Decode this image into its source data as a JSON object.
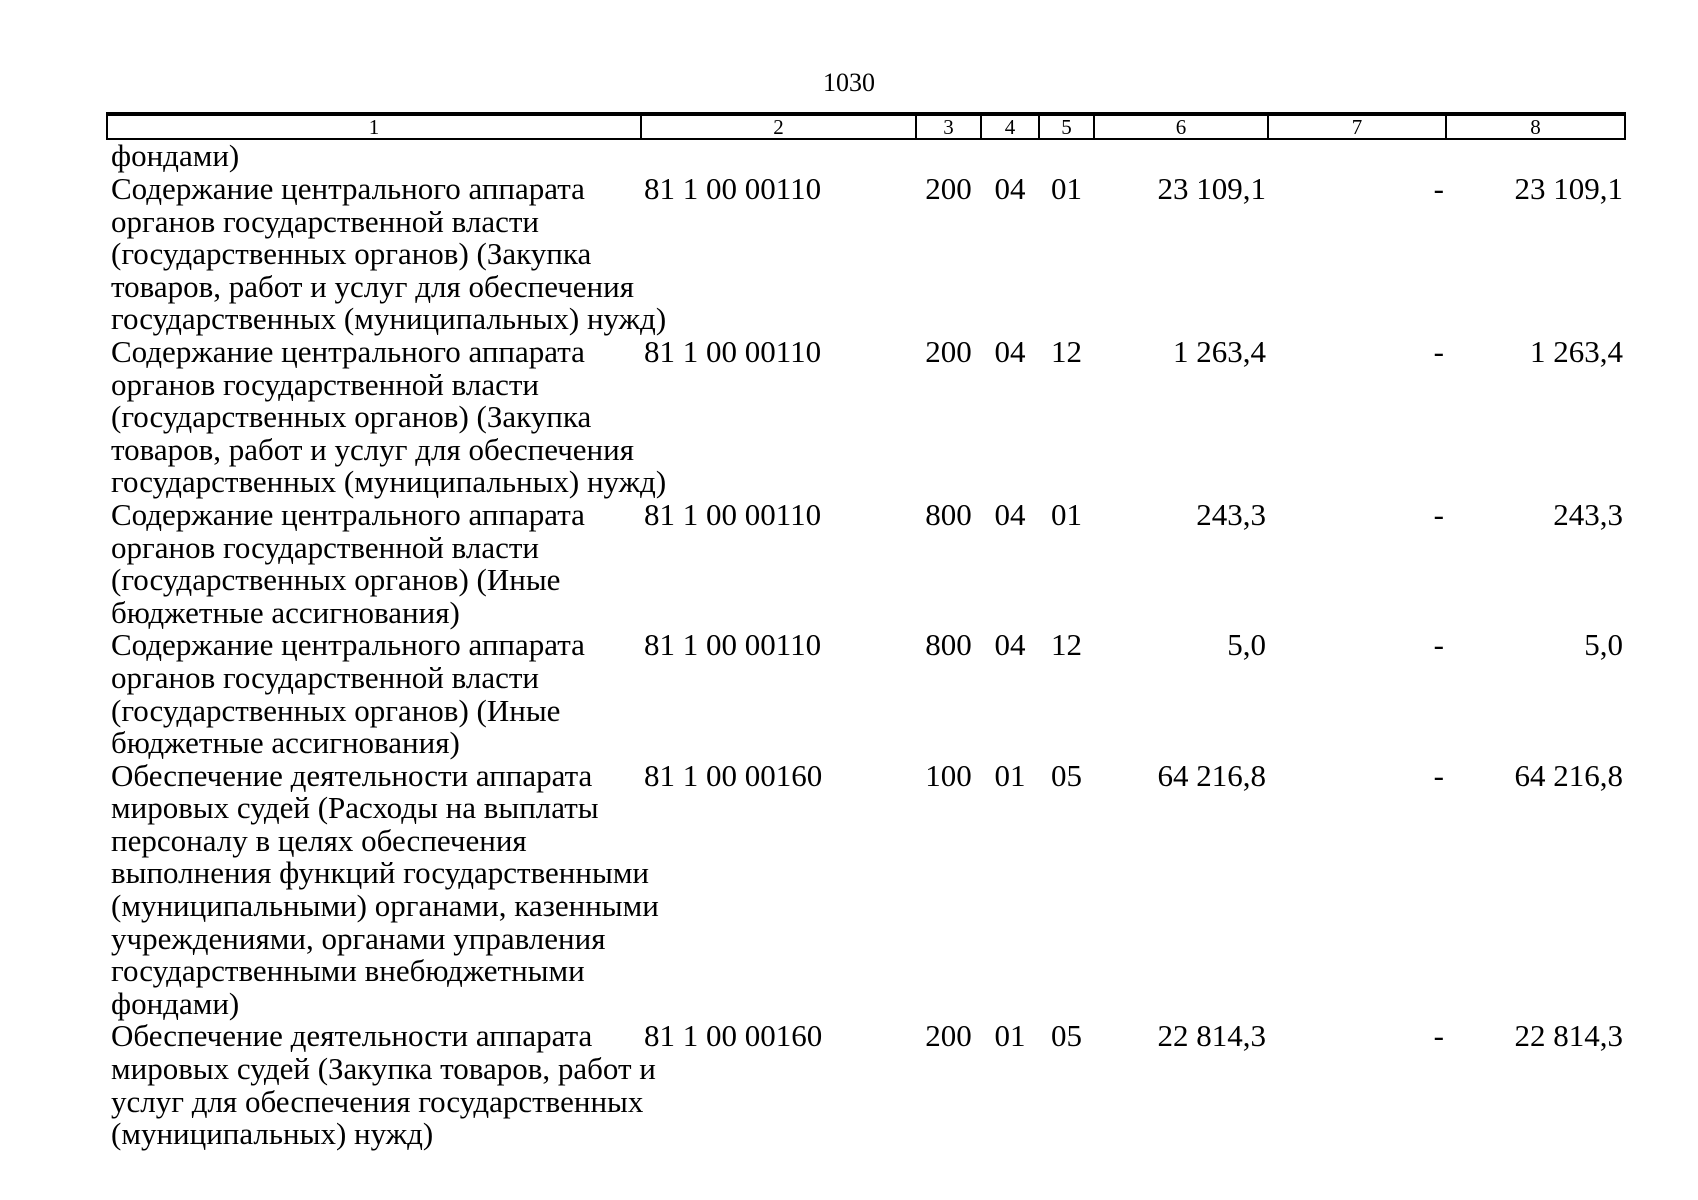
{
  "page": {
    "number": "1030",
    "background_color": "#ffffff",
    "text_color": "#000000"
  },
  "table": {
    "column_headers": [
      "1",
      "2",
      "3",
      "4",
      "5",
      "6",
      "7",
      "8"
    ],
    "rows": [
      [
        "фондами)",
        "",
        "",
        "",
        "",
        "",
        "",
        ""
      ],
      [
        "Содержание центрального аппарата\nорганов государственной власти\n(государственных органов) (Закупка\nтоваров, работ и услуг для обеспечения\nгосударственных (муниципальных) нужд)",
        "81 1 00 00110",
        "200",
        "04",
        "01",
        "23 109,1",
        "-",
        "23 109,1"
      ],
      [
        "Содержание центрального аппарата\nорганов государственной власти\n(государственных органов) (Закупка\nтоваров, работ и услуг для обеспечения\nгосударственных (муниципальных) нужд)",
        "81 1 00 00110",
        "200",
        "04",
        "12",
        "1 263,4",
        "-",
        "1 263,4"
      ],
      [
        "Содержание центрального аппарата\nорганов государственной власти\n(государственных органов) (Иные\nбюджетные ассигнования)",
        "81 1 00 00110",
        "800",
        "04",
        "01",
        "243,3",
        "-",
        "243,3"
      ],
      [
        "Содержание центрального аппарата\nорганов государственной власти\n(государственных органов) (Иные\nбюджетные ассигнования)",
        "81 1 00 00110",
        "800",
        "04",
        "12",
        "5,0",
        "-",
        "5,0"
      ],
      [
        "Обеспечение деятельности аппарата\nмировых судей (Расходы на выплаты\nперсоналу в целях обеспечения\nвыполнения функций государственными\n(муниципальными) органами, казенными\nучреждениями, органами управления\nгосударственными внебюджетными\nфондами)",
        "81 1 00 00160",
        "100",
        "01",
        "05",
        "64 216,8",
        "-",
        "64 216,8"
      ],
      [
        "Обеспечение деятельности аппарата\nмировых судей (Закупка товаров, работ и\nуслуг для обеспечения государственных\n(муниципальных) нужд)",
        "81 1 00 00160",
        "200",
        "01",
        "05",
        "22 814,3",
        "-",
        "22 814,3"
      ]
    ]
  }
}
